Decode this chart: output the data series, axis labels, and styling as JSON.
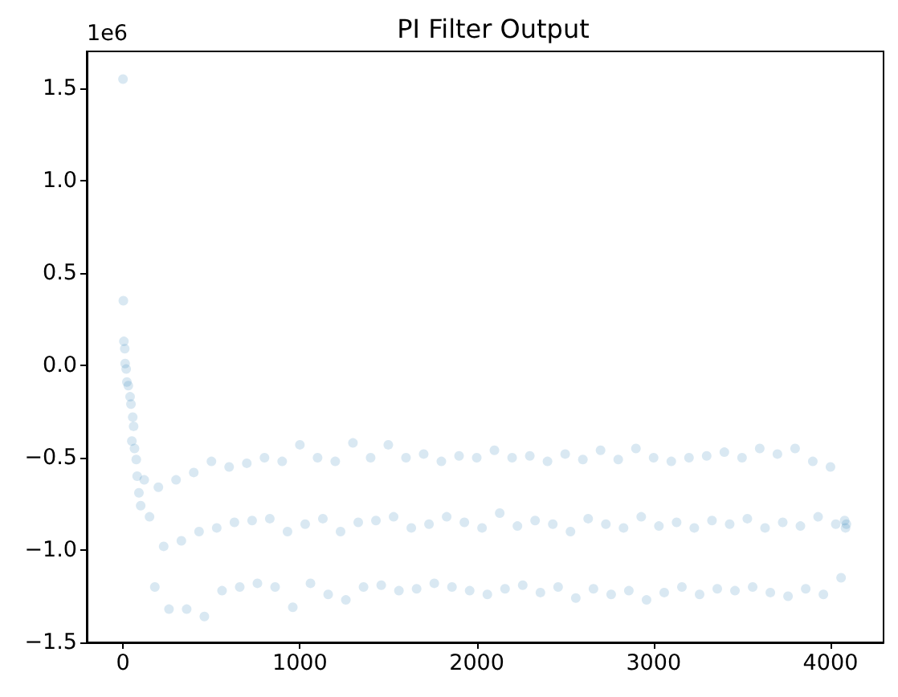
{
  "chart_data": {
    "type": "scatter",
    "title": "PI Filter Output",
    "annotations": [
      "1e6"
    ],
    "x": [
      0,
      2,
      5,
      10,
      12,
      18,
      22,
      30,
      40,
      45,
      55,
      60,
      50,
      65,
      75,
      80,
      90,
      100,
      120,
      150,
      180,
      200,
      230,
      260,
      300,
      330,
      360,
      400,
      430,
      460,
      500,
      530,
      560,
      600,
      630,
      660,
      700,
      730,
      760,
      800,
      830,
      860,
      900,
      930,
      960,
      1000,
      1030,
      1060,
      1100,
      1130,
      1160,
      1200,
      1230,
      1260,
      1300,
      1330,
      1360,
      1400,
      1430,
      1460,
      1500,
      1530,
      1560,
      1600,
      1630,
      1660,
      1700,
      1730,
      1760,
      1800,
      1830,
      1860,
      1900,
      1930,
      1960,
      2000,
      2030,
      2060,
      2100,
      2130,
      2160,
      2200,
      2230,
      2260,
      2300,
      2330,
      2360,
      2400,
      2430,
      2460,
      2500,
      2530,
      2560,
      2600,
      2630,
      2660,
      2700,
      2730,
      2760,
      2800,
      2830,
      2860,
      2900,
      2930,
      2960,
      3000,
      3030,
      3060,
      3100,
      3130,
      3160,
      3200,
      3230,
      3260,
      3300,
      3330,
      3360,
      3400,
      3430,
      3460,
      3500,
      3530,
      3560,
      3600,
      3630,
      3660,
      3700,
      3730,
      3760,
      3800,
      3830,
      3860,
      3900,
      3930,
      3960,
      4000,
      4030,
      4060,
      4080,
      4085,
      4090
    ],
    "values": [
      1.55,
      0.35,
      0.13,
      0.09,
      0.01,
      -0.02,
      -0.09,
      -0.11,
      -0.17,
      -0.21,
      -0.28,
      -0.33,
      -0.41,
      -0.45,
      -0.51,
      -0.6,
      -0.69,
      -0.76,
      -0.62,
      -0.82,
      -1.2,
      -0.66,
      -0.98,
      -1.32,
      -0.62,
      -0.95,
      -1.32,
      -0.58,
      -0.9,
      -1.36,
      -0.52,
      -0.88,
      -1.22,
      -0.55,
      -0.85,
      -1.2,
      -0.53,
      -0.84,
      -1.18,
      -0.5,
      -0.83,
      -1.2,
      -0.52,
      -0.9,
      -1.31,
      -0.43,
      -0.86,
      -1.18,
      -0.5,
      -0.83,
      -1.24,
      -0.52,
      -0.9,
      -1.27,
      -0.42,
      -0.85,
      -1.2,
      -0.5,
      -0.84,
      -1.19,
      -0.43,
      -0.82,
      -1.22,
      -0.5,
      -0.88,
      -1.21,
      -0.48,
      -0.86,
      -1.18,
      -0.52,
      -0.82,
      -1.2,
      -0.49,
      -0.85,
      -1.22,
      -0.5,
      -0.88,
      -1.24,
      -0.46,
      -0.8,
      -1.21,
      -0.5,
      -0.87,
      -1.19,
      -0.49,
      -0.84,
      -1.23,
      -0.52,
      -0.86,
      -1.2,
      -0.48,
      -0.9,
      -1.26,
      -0.51,
      -0.83,
      -1.21,
      -0.46,
      -0.86,
      -1.24,
      -0.51,
      -0.88,
      -1.22,
      -0.45,
      -0.82,
      -1.27,
      -0.5,
      -0.87,
      -1.23,
      -0.52,
      -0.85,
      -1.2,
      -0.5,
      -0.88,
      -1.24,
      -0.49,
      -0.84,
      -1.21,
      -0.47,
      -0.86,
      -1.22,
      -0.5,
      -0.83,
      -1.2,
      -0.45,
      -0.88,
      -1.23,
      -0.48,
      -0.85,
      -1.25,
      -0.45,
      -0.87,
      -1.21,
      -0.52,
      -0.82,
      -1.24,
      -0.55,
      -0.86,
      -1.15,
      -0.84,
      -0.88,
      -0.86
    ],
    "color": "#1f77b4",
    "marker": "circle",
    "xlim": [
      -205,
      4300
    ],
    "xticks": [
      0,
      1000,
      2000,
      3000,
      4000
    ],
    "ylim": [
      -1.5,
      1.7
    ],
    "yticks": [
      {
        "value": -1.5,
        "label": "−1.5"
      },
      {
        "value": -1,
        "label": "−1.0"
      },
      {
        "value": -0.5,
        "label": "−0.5"
      },
      {
        "value": 0,
        "label": "0.0"
      },
      0.5,
      {
        "value": 1,
        "label": "1.0"
      },
      1.5
    ]
  }
}
